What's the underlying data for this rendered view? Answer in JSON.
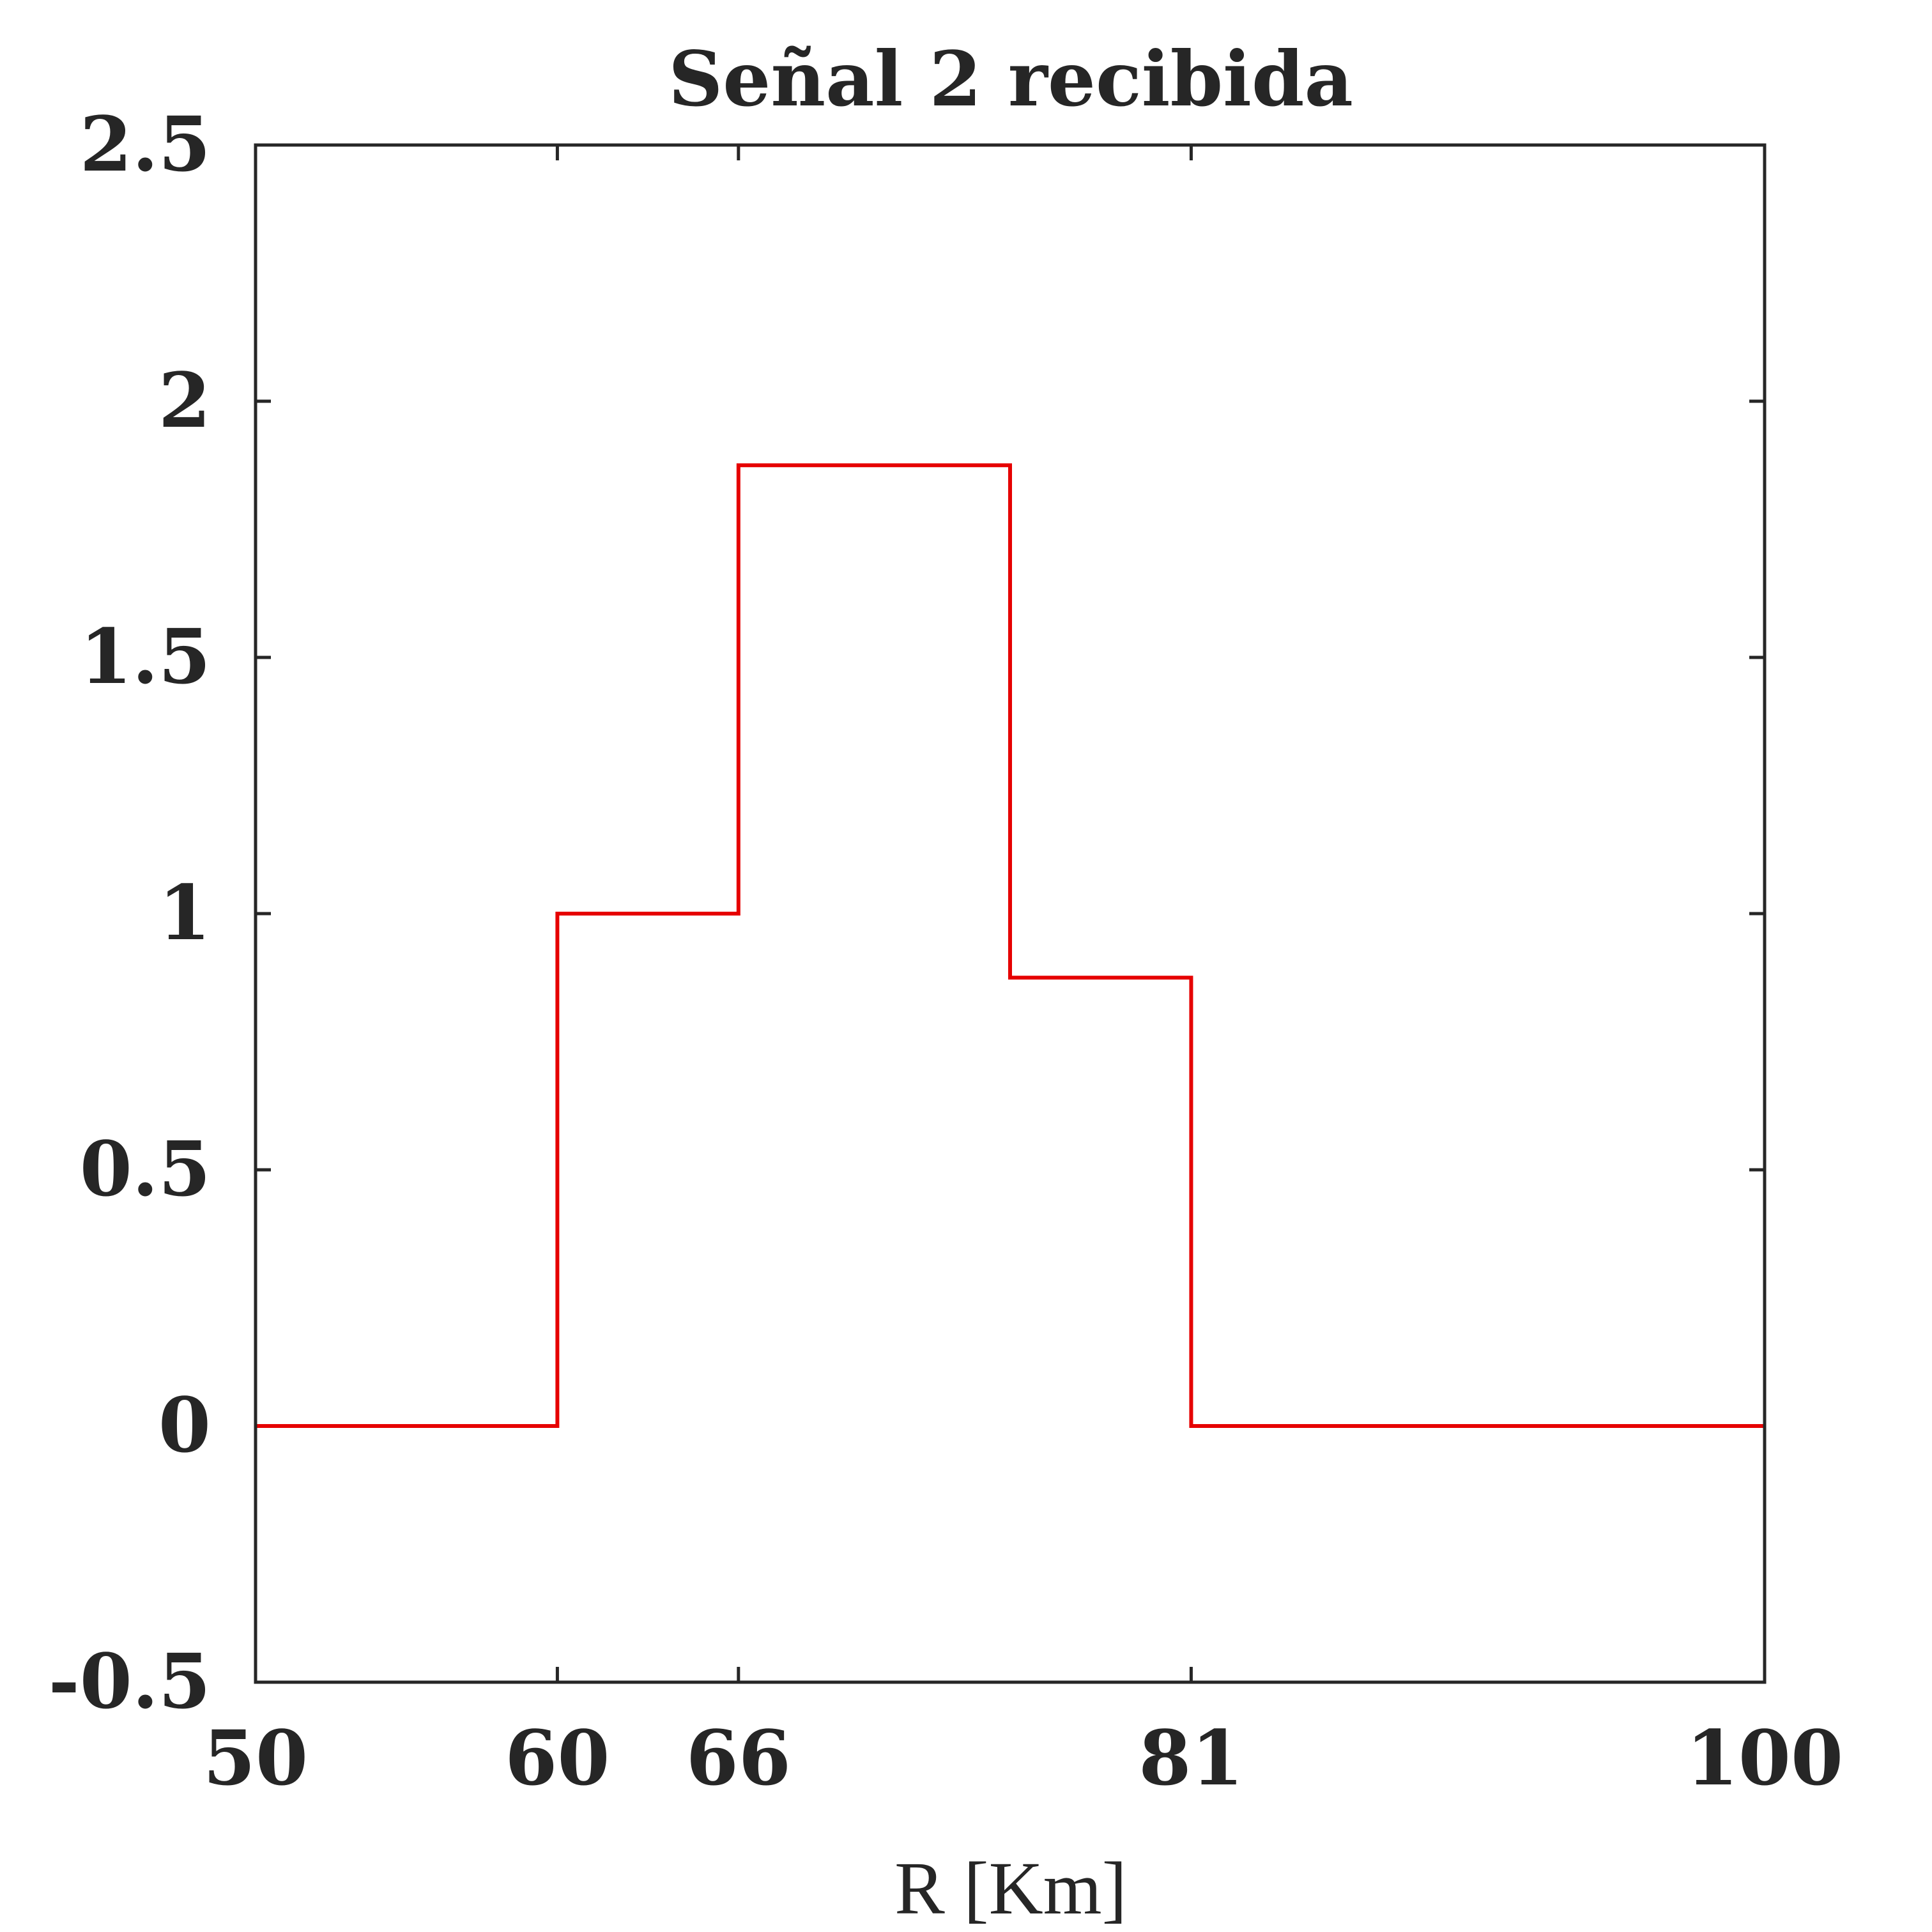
{
  "chart_data": {
    "type": "line",
    "title": "Señal 2 recibida",
    "xlabel": "R [Km]",
    "ylabel": "",
    "xlim": [
      50,
      100
    ],
    "ylim": [
      -0.5,
      2.5
    ],
    "xticks": [
      50,
      60,
      66,
      81,
      100
    ],
    "xtick_labels": [
      "50",
      "60",
      "66",
      "81",
      "100"
    ],
    "yticks": [
      -0.5,
      0,
      0.5,
      1,
      1.5,
      2,
      2.5
    ],
    "ytick_labels": [
      "-0.5",
      "0",
      "0.5",
      "1",
      "1.5",
      "2",
      "2.5"
    ],
    "grid": false,
    "series": [
      {
        "color": "#e60000",
        "step": true,
        "x": [
          50,
          60,
          60,
          66,
          66,
          75,
          75,
          81,
          81,
          100
        ],
        "y": [
          0,
          0,
          1,
          1,
          1.875,
          1.875,
          0.875,
          0.875,
          0,
          0
        ]
      }
    ]
  }
}
